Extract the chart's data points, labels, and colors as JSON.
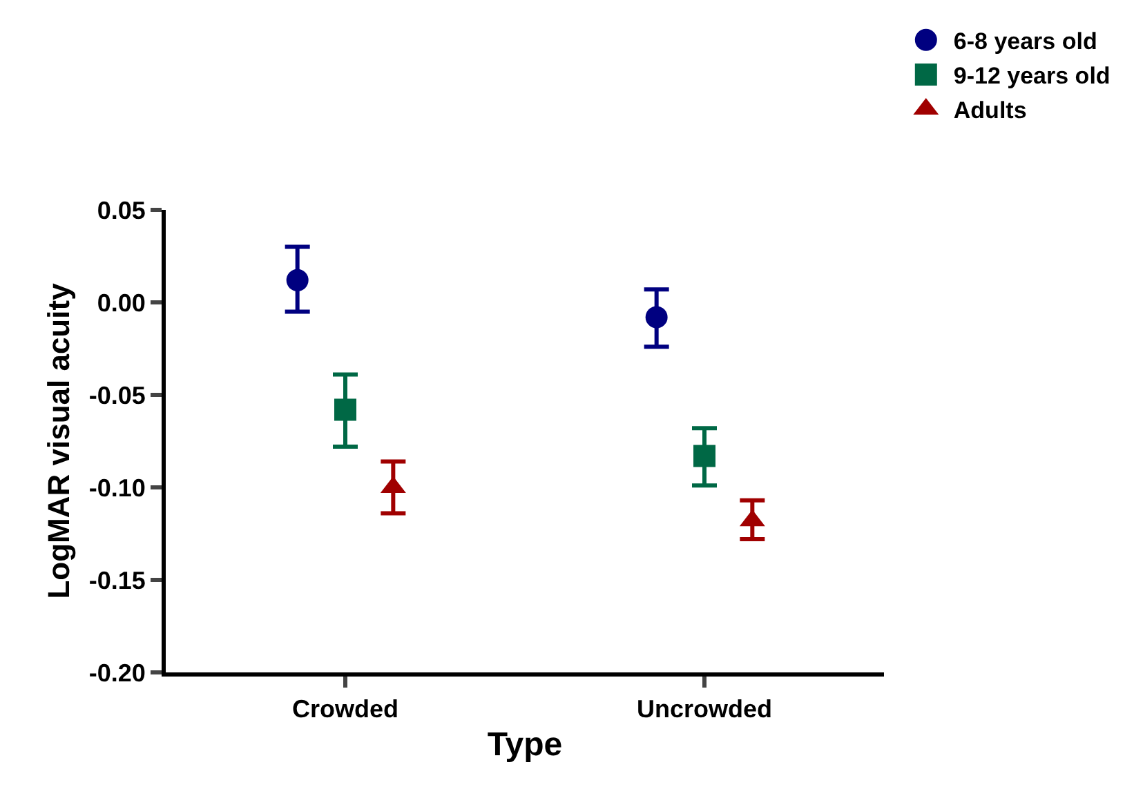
{
  "chart_data": {
    "type": "scatter",
    "xlabel": "Type",
    "ylabel": "LogMAR visual acuity",
    "categories": [
      "Crowded",
      "Uncrowded"
    ],
    "series": [
      {
        "name": "6-8 years old",
        "color": "#000080",
        "marker": "circle",
        "values": [
          0.012,
          -0.008
        ],
        "errors": [
          [
            -0.005,
            0.03
          ],
          [
            -0.024,
            0.007
          ]
        ]
      },
      {
        "name": "9-12 years old",
        "color": "#006845",
        "marker": "square",
        "values": [
          -0.058,
          -0.083
        ],
        "errors": [
          [
            -0.078,
            -0.039
          ],
          [
            -0.099,
            -0.068
          ]
        ]
      },
      {
        "name": "Adults",
        "color": "#a00000",
        "marker": "triangle",
        "values": [
          -0.1,
          -0.118
        ],
        "errors": [
          [
            -0.114,
            -0.086
          ],
          [
            -0.128,
            -0.107
          ]
        ]
      }
    ],
    "ylim": [
      -0.2,
      0.05
    ],
    "yticks": [
      {
        "value": -0.2,
        "label": "-0.20"
      },
      {
        "value": -0.15,
        "label": "-0.15"
      },
      {
        "value": -0.1,
        "label": "-0.10"
      },
      {
        "value": -0.05,
        "label": "-0.05"
      },
      {
        "value": 0,
        "label": "0.00"
      },
      {
        "value": 0.05,
        "label": "0.05"
      }
    ],
    "legend": "top right"
  }
}
